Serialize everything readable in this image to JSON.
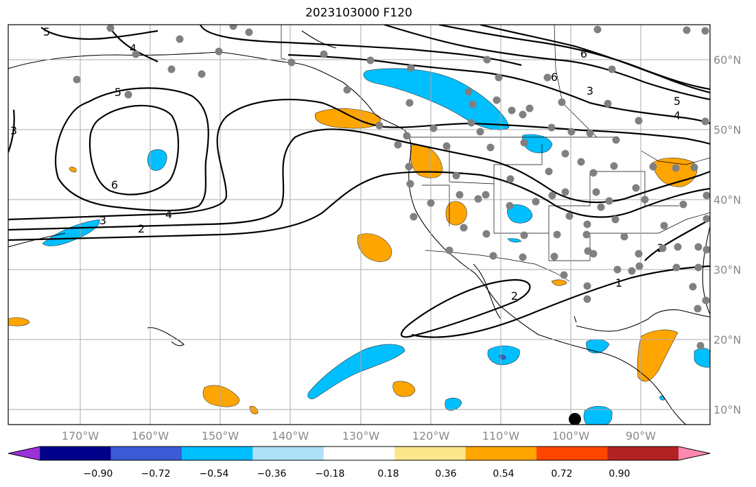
{
  "title": "2023103000 F120",
  "map": {
    "lon_labels": [
      "170°W",
      "160°W",
      "150°W",
      "140°W",
      "130°W",
      "120°W",
      "110°W",
      "100°W",
      "90°W"
    ],
    "lat_labels": [
      "60°N",
      "50°N",
      "40°N",
      "30°N",
      "20°N",
      "10°N"
    ],
    "contour_labels": [
      "5",
      "4",
      "5",
      "3",
      "6",
      "6",
      "4",
      "3",
      "2",
      "6",
      "3",
      "5",
      "4",
      "2",
      "2",
      "1"
    ]
  },
  "colorbar": {
    "tick_labels": [
      "−0.90",
      "−0.72",
      "−0.54",
      "−0.36",
      "−0.18",
      "0.18",
      "0.36",
      "0.54",
      "0.72",
      "0.90"
    ],
    "colors": [
      "#9b30d9",
      "#00008b",
      "#3b5bd6",
      "#00bfff",
      "#aee1f8",
      "#ffffff",
      "#fbe68a",
      "#ffa500",
      "#ff4500",
      "#b22222",
      "#ff88b0"
    ]
  }
}
